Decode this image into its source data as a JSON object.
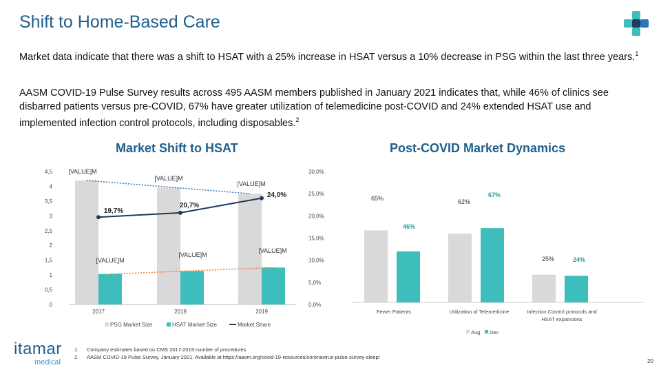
{
  "slide": {
    "title": "Shift to Home-Based Care",
    "para1": "Market data indicate that there was a shift to HSAT with a 25% increase in HSAT versus a 10% decrease in PSG within the last three years.",
    "para1_sup": "1",
    "para2": "AASM COVID-19 Pulse Survey results across 495 AASM members published in January 2021 indicates that, while 46% of clinics see disbarred patients versus pre-COVID, 67% have greater utilization of telemedicine post-COVID and 24% extended HSAT use and implemented infection control protocols, including disposables.",
    "para2_sup": "2",
    "page_number": "20"
  },
  "logo": {
    "line1": "itamar",
    "line2": "medical"
  },
  "footnotes": [
    {
      "num": "1.",
      "text": "Company estimates based on CMS 2017-2019 number of procedures"
    },
    {
      "num": "2.",
      "text": "AASM COVID-19 Pulse Survey, January 2021. Available at https://aasm.org/covid-19-resources/coronavirus-pulse-survey-sleep/"
    }
  ],
  "colors": {
    "psg": "#d9d9d9",
    "hsat": "#3dbdbb",
    "share": "#1f3a5a",
    "psg_trend": "#2e75b6",
    "hsat_trend": "#ed7d31",
    "title": "#1f5f8b"
  },
  "chart_data": [
    {
      "type": "bar",
      "title": "Market Shift to HSAT",
      "categories": [
        "2017",
        "2018",
        "2019"
      ],
      "series": [
        {
          "name": "PSG Market Size",
          "axis": "left",
          "values": [
            4.2,
            3.95,
            3.75
          ],
          "labels": [
            "[VALUE]M",
            "[VALUE]M",
            "[VALUE]M"
          ]
        },
        {
          "name": "HSAT Market Size",
          "axis": "left",
          "values": [
            1.03,
            1.13,
            1.25
          ],
          "labels": [
            "[VALUE]M",
            "[VALUE]M",
            "[VALUE]M"
          ]
        },
        {
          "name": "Market Share",
          "type": "line",
          "axis": "right",
          "values": [
            19.7,
            20.7,
            24.0
          ],
          "labels": [
            "19,7%",
            "20,7%",
            "24,0%"
          ]
        }
      ],
      "y_left": {
        "min": 0,
        "max": 4.5,
        "ticks": [
          "0",
          "0,5",
          "1",
          "1,5",
          "2",
          "2,5",
          "3",
          "3,5",
          "4",
          "4,5"
        ]
      },
      "y_right": {
        "min": 0,
        "max": 30,
        "ticks": [
          "0,0%",
          "5,0%",
          "10,0%",
          "15,0%",
          "20,0%",
          "25,0%",
          "30,0%"
        ]
      },
      "legend": [
        "PSG Market Size",
        "HSAT Market Size",
        "Market Share"
      ]
    },
    {
      "type": "bar",
      "title": "Post-COVID Market Dynamics",
      "categories": [
        "Fewer Patients",
        "Utilization of Telemedicine",
        "Infection Control protocols and HSAT expansions"
      ],
      "series": [
        {
          "name": "Aug",
          "values": [
            65,
            62,
            25
          ],
          "labels": [
            "65%",
            "62%",
            "25%"
          ]
        },
        {
          "name": "Dec",
          "values": [
            46,
            67,
            24
          ],
          "labels": [
            "46%",
            "67%",
            "24%"
          ]
        }
      ],
      "ylim": [
        0,
        100
      ],
      "legend": [
        "Aug",
        "Dec"
      ]
    }
  ]
}
